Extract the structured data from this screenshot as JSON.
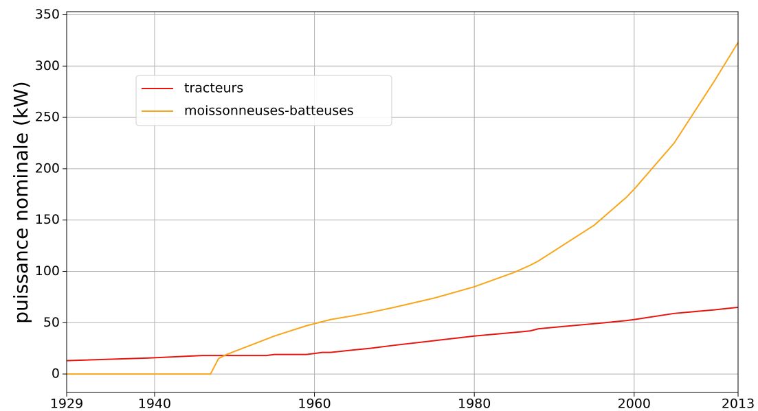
{
  "chart_data": {
    "type": "line",
    "ylabel": "puissance nominale (kW)",
    "x": [
      1929,
      1939,
      1946,
      1947,
      1948,
      1949,
      1952,
      1954,
      1955,
      1959,
      1960,
      1961,
      1962,
      1965,
      1967,
      1970,
      1975,
      1980,
      1985,
      1987,
      1988,
      1990,
      1995,
      1999,
      2000,
      2005,
      2010,
      2013
    ],
    "series": [
      {
        "name": "tracteurs",
        "color": "#e8150f",
        "values": [
          13,
          15.5,
          18,
          18,
          18,
          18,
          18,
          18,
          19,
          19,
          20,
          21,
          21,
          23.5,
          25,
          28,
          32.5,
          37,
          40.5,
          42,
          44,
          45.5,
          49,
          52,
          53,
          59,
          62.5,
          65
        ]
      },
      {
        "name": "moissonneuses-batteuses",
        "color": "#f9a51a",
        "values": [
          0,
          0,
          0,
          0,
          15,
          19,
          28,
          34,
          37,
          47,
          49,
          51,
          53,
          57,
          60,
          65,
          74,
          85,
          99,
          106,
          110,
          120,
          145,
          172,
          180,
          225,
          285,
          323
        ]
      }
    ],
    "xlim": [
      1929,
      2013
    ],
    "xticks": [
      1929,
      1940,
      1960,
      1980,
      2000,
      2013
    ],
    "ylim": [
      -18,
      353
    ],
    "yticks": [
      0,
      50,
      100,
      150,
      200,
      250,
      300,
      350
    ],
    "grid": true,
    "legend": "upper left"
  }
}
